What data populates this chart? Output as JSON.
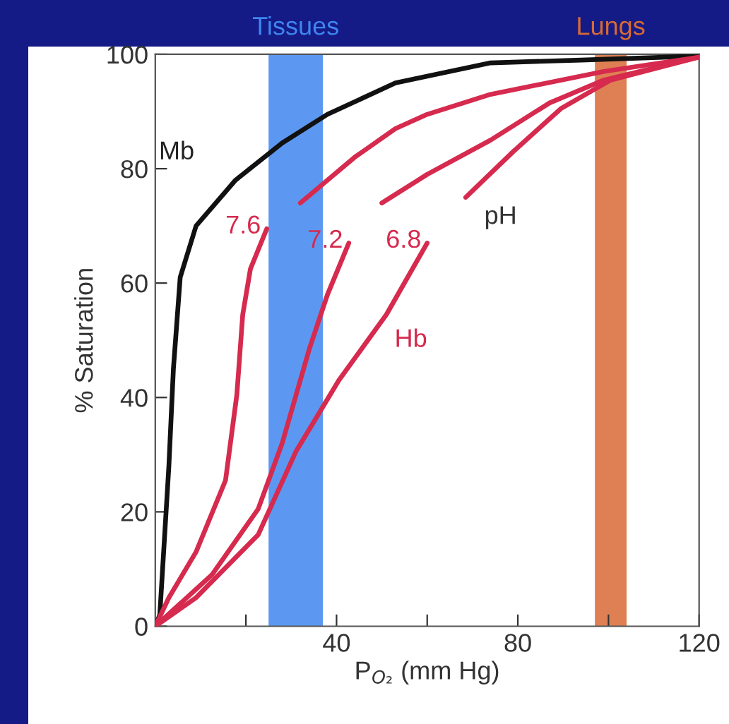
{
  "chart_data": {
    "type": "line",
    "xlabel": "P$_{O₂}$ (mm Hg)",
    "ylabel": "% Saturation",
    "xlim": [
      0,
      120
    ],
    "ylim": [
      0,
      100
    ],
    "xticks": [
      {
        "value": 20,
        "label": null
      },
      40,
      {
        "value": 60,
        "label": null
      },
      80,
      {
        "value": 100,
        "label": null
      },
      120
    ],
    "yticks": [
      0,
      20,
      40,
      60,
      80,
      100
    ],
    "grid": false,
    "legend": false,
    "marker": "none",
    "line_style": "solid",
    "bands": [
      {
        "axis": "x",
        "from": 25,
        "to": 37,
        "label": "Tissues",
        "color": "#3f86f0"
      },
      {
        "axis": "x",
        "from": 97,
        "to": 104,
        "label": "Lungs",
        "color": "#d86a35"
      }
    ],
    "annotations": [
      "pH",
      "Hb"
    ],
    "series": [
      {
        "name": "Mb",
        "color": "#111111",
        "x": [
          0,
          1,
          3,
          4,
          5.5,
          9,
          17.7,
          28,
          38,
          53,
          74,
          94,
          120
        ],
        "values": [
          0,
          2,
          28,
          45,
          61,
          70,
          78,
          84.5,
          89.5,
          95,
          98.5,
          99,
          99.7
        ]
      },
      {
        "name": "7.6",
        "color": "#d62a4e",
        "x": [
          0,
          3,
          9,
          15.5,
          18,
          19.3,
          21,
          24.6,
          28,
          32,
          44,
          53,
          60,
          74,
          99,
          120
        ],
        "values": [
          0,
          5,
          13,
          25.5,
          40.5,
          54.5,
          62.5,
          69.5,
          null,
          74,
          82,
          87,
          89.5,
          93,
          97,
          99.5
        ]
      },
      {
        "name": "7.2",
        "color": "#d62a4e",
        "x": [
          0,
          12.5,
          22.7,
          28,
          34,
          38,
          42.7,
          46,
          50,
          60,
          74,
          87,
          99,
          120
        ],
        "values": [
          0,
          9,
          20.5,
          32,
          48.5,
          58,
          67,
          null,
          74,
          79,
          85,
          91.5,
          95.5,
          99.5
        ]
      },
      {
        "name": "6.8",
        "color": "#d62a4e",
        "x": [
          0,
          9,
          22.7,
          31,
          40.5,
          51,
          60,
          64,
          68.5,
          79,
          89.5,
          100.5,
          120
        ],
        "values": [
          0,
          5,
          16,
          30.5,
          43,
          54.5,
          67,
          null,
          75,
          83,
          90.5,
          95.5,
          99.5
        ]
      }
    ]
  }
}
